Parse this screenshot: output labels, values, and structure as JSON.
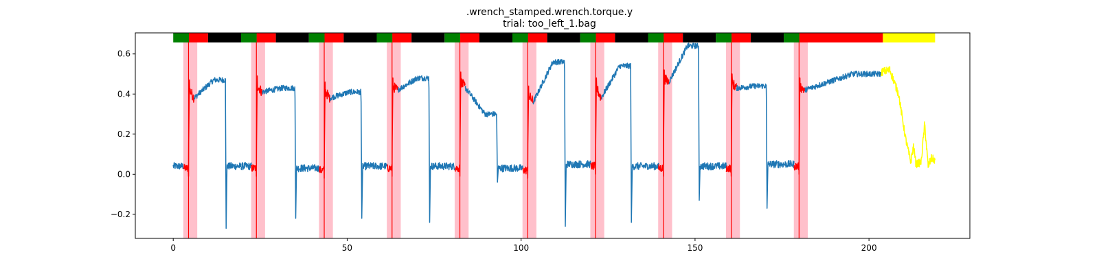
{
  "chart_data": {
    "type": "line",
    "title": ".wrench_stamped.wrench.torque.y",
    "subtitle": "trial: too_left_1.bag",
    "xlabel": "",
    "ylabel": "",
    "xlim": [
      -10.9,
      229
    ],
    "ylim": [
      -0.32,
      0.705
    ],
    "xticks": [
      0,
      50,
      100,
      150,
      200
    ],
    "yticks": [
      -0.2,
      0.0,
      0.2,
      0.4,
      0.6
    ],
    "ytick_labels": [
      "−0.2",
      "0.0",
      "0.2",
      "0.4",
      "0.6"
    ],
    "grid": false,
    "colors": {
      "main_line": "#1f77b4",
      "highlight_line": "#ff0000",
      "final_segment": "#ffff00",
      "shade": "#ffc0cb",
      "bar_green": "#008000",
      "bar_red": "#ff0000",
      "bar_black": "#000000",
      "bar_yellow": "#ffff00"
    },
    "cycle_starts": [
      0,
      19.5,
      39,
      58.5,
      78,
      97.5,
      117,
      136.5,
      156,
      175.5
    ],
    "cycles": [
      {
        "base": 0.04,
        "peak": 0.43,
        "dip": 0.38,
        "plateau": 0.47,
        "fall": 15,
        "spike": -0.27
      },
      {
        "base": 0.04,
        "peak": 0.45,
        "dip": 0.41,
        "plateau": 0.43,
        "fall": 35,
        "spike": -0.22
      },
      {
        "base": 0.03,
        "peak": 0.42,
        "dip": 0.38,
        "plateau": 0.41,
        "fall": 54,
        "spike": -0.22
      },
      {
        "base": 0.04,
        "peak": 0.44,
        "dip": 0.42,
        "plateau": 0.48,
        "fall": 73.5,
        "spike": -0.24
      },
      {
        "base": 0.04,
        "peak": 0.47,
        "dip": 0.43,
        "plateau": 0.3,
        "fall": 93,
        "spike": -0.04
      },
      {
        "base": 0.03,
        "peak": 0.4,
        "dip": 0.36,
        "plateau": 0.56,
        "fall": 112.5,
        "spike": -0.26
      },
      {
        "base": 0.05,
        "peak": 0.44,
        "dip": 0.38,
        "plateau": 0.54,
        "fall": 131.5,
        "spike": -0.24
      },
      {
        "base": 0.04,
        "peak": 0.48,
        "dip": 0.46,
        "plateau": 0.64,
        "fall": 151,
        "spike": -0.13
      },
      {
        "base": 0.04,
        "peak": 0.46,
        "dip": 0.43,
        "plateau": 0.44,
        "fall": 170.5,
        "spike": -0.17
      },
      {
        "base": 0.05,
        "peak": 0.44,
        "dip": 0.42,
        "plateau": 0.5,
        "fall": null,
        "spike": null
      }
    ],
    "shaded_bands": [
      [
        2.9,
        6.9
      ],
      [
        22.4,
        26.4
      ],
      [
        41.9,
        45.9
      ],
      [
        61.4,
        65.4
      ],
      [
        80.9,
        84.9
      ],
      [
        100.4,
        104.4
      ],
      [
        119.9,
        123.9
      ],
      [
        139.4,
        143.4
      ],
      [
        158.9,
        162.9
      ],
      [
        178.4,
        182.4
      ]
    ],
    "vertical_lines": [
      4.4,
      23.9,
      43.4,
      62.9,
      82.4,
      101.9,
      121.4,
      140.9,
      160.4,
      179.9
    ],
    "top_bar": [
      {
        "from": 0,
        "to": 4.5,
        "color": "green"
      },
      {
        "from": 4.5,
        "to": 10,
        "color": "red"
      },
      {
        "from": 10,
        "to": 19.5,
        "color": "black"
      },
      {
        "from": 19.5,
        "to": 24,
        "color": "green"
      },
      {
        "from": 24,
        "to": 29.5,
        "color": "red"
      },
      {
        "from": 29.5,
        "to": 39,
        "color": "black"
      },
      {
        "from": 39,
        "to": 43.5,
        "color": "green"
      },
      {
        "from": 43.5,
        "to": 49,
        "color": "red"
      },
      {
        "from": 49,
        "to": 58.5,
        "color": "black"
      },
      {
        "from": 58.5,
        "to": 63,
        "color": "green"
      },
      {
        "from": 63,
        "to": 68.5,
        "color": "red"
      },
      {
        "from": 68.5,
        "to": 78,
        "color": "black"
      },
      {
        "from": 78,
        "to": 82.5,
        "color": "green"
      },
      {
        "from": 82.5,
        "to": 88,
        "color": "red"
      },
      {
        "from": 88,
        "to": 97.5,
        "color": "black"
      },
      {
        "from": 97.5,
        "to": 102,
        "color": "green"
      },
      {
        "from": 102,
        "to": 107.5,
        "color": "red"
      },
      {
        "from": 107.5,
        "to": 117,
        "color": "black"
      },
      {
        "from": 117,
        "to": 121.5,
        "color": "green"
      },
      {
        "from": 121.5,
        "to": 127,
        "color": "red"
      },
      {
        "from": 127,
        "to": 136.5,
        "color": "black"
      },
      {
        "from": 136.5,
        "to": 141,
        "color": "green"
      },
      {
        "from": 141,
        "to": 146.5,
        "color": "red"
      },
      {
        "from": 146.5,
        "to": 156,
        "color": "black"
      },
      {
        "from": 156,
        "to": 160.5,
        "color": "green"
      },
      {
        "from": 160.5,
        "to": 166,
        "color": "red"
      },
      {
        "from": 166,
        "to": 175.5,
        "color": "black"
      },
      {
        "from": 175.5,
        "to": 180,
        "color": "green"
      },
      {
        "from": 180,
        "to": 204,
        "color": "red"
      },
      {
        "from": 204,
        "to": 219,
        "color": "yellow"
      }
    ],
    "final_segment": {
      "x": [
        203.5,
        206,
        208.5,
        210.5,
        212,
        212.8,
        213.5,
        215,
        216,
        217,
        218,
        219
      ],
      "y": [
        0.51,
        0.52,
        0.4,
        0.18,
        0.06,
        0.14,
        0.05,
        0.06,
        0.25,
        0.04,
        0.08,
        0.07
      ]
    }
  }
}
